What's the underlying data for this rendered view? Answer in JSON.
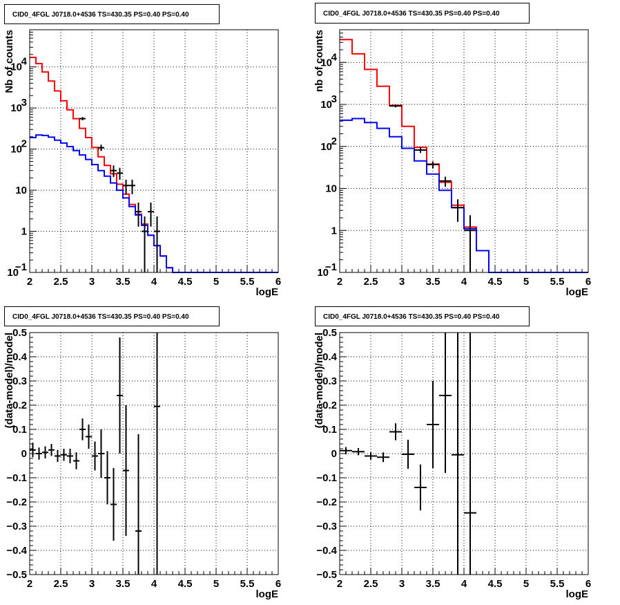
{
  "chart_data": [
    {
      "type": "line",
      "title": "CID0_4FGL J0718.0+4536 TS=430.35 PS=0.40 PS=0.40",
      "xlabel": "logE",
      "ylabel": "Nb of counts",
      "xlim": [
        2,
        6
      ],
      "ylim": [
        0.1,
        80000
      ],
      "yscale": "log",
      "grid": true,
      "x_ticks": [
        "2",
        "2.5",
        "3",
        "3.5",
        "4",
        "4.5",
        "5",
        "5.5",
        "6"
      ],
      "y_ticks": [
        {
          "v": 0.1,
          "label": "10",
          "exp": "−1"
        },
        {
          "v": 1,
          "label": "1"
        },
        {
          "v": 10,
          "label": "10"
        },
        {
          "v": 100,
          "label": "10",
          "exp": "2"
        },
        {
          "v": 1000,
          "label": "10",
          "exp": "3"
        },
        {
          "v": 10000,
          "label": "10",
          "exp": "4"
        }
      ],
      "bin_edges": [
        2.0,
        2.1,
        2.2,
        2.3,
        2.4,
        2.5,
        2.6,
        2.7,
        2.8,
        2.9,
        3.0,
        3.1,
        3.2,
        3.3,
        3.4,
        3.5,
        3.6,
        3.7,
        3.8,
        3.9,
        4.0,
        4.1,
        4.2,
        4.3,
        4.4,
        4.5,
        4.6,
        4.7,
        4.8,
        4.9,
        5.0,
        5.1,
        5.2,
        5.3,
        5.4,
        5.5,
        5.6,
        5.7,
        5.8,
        5.9,
        6.0
      ],
      "series": [
        {
          "color": "#ff0000",
          "style": "step",
          "values": [
            17000,
            12000,
            7500,
            4500,
            2600,
            1500,
            900,
            550,
            320,
            190,
            110,
            65,
            40,
            25,
            14,
            8,
            4.5,
            2.6,
            1.5,
            0.8,
            0.45,
            0.25,
            0.13,
            0.1,
            0.1,
            0.1,
            0.1,
            0.1,
            0.1,
            0.1,
            0.1,
            0.1,
            0.1,
            0.1,
            0.1,
            0.1,
            0.1,
            0.1,
            0.1,
            0.1
          ]
        },
        {
          "color": "#0000ff",
          "style": "step",
          "values": [
            190,
            220,
            215,
            195,
            165,
            140,
            115,
            92,
            72,
            56,
            42,
            30,
            22,
            15,
            10,
            6.5,
            4,
            2.5,
            1.4,
            0.8,
            0.45,
            0.25,
            0.13,
            0.1,
            0.1,
            0.1,
            0.1,
            0.1,
            0.1,
            0.1,
            0.1,
            0.1,
            0.1,
            0.1,
            0.1,
            0.1,
            0.1,
            0.1,
            0.1,
            0.1
          ]
        },
        {
          "color": "#000000",
          "style": "errorbar",
          "halfwidth": 0.05,
          "points": [
            {
              "x": 2.85,
              "y": 550,
              "lo": 500,
              "hi": 600
            },
            {
              "x": 3.15,
              "y": 108,
              "lo": 90,
              "hi": 128
            },
            {
              "x": 3.35,
              "y": 30,
              "lo": 21,
              "hi": 40
            },
            {
              "x": 3.45,
              "y": 26,
              "lo": 18,
              "hi": 35
            },
            {
              "x": 3.55,
              "y": 13,
              "lo": 8,
              "hi": 18
            },
            {
              "x": 3.65,
              "y": 13,
              "lo": 8,
              "hi": 18
            },
            {
              "x": 3.75,
              "y": 3,
              "lo": 1.3,
              "hi": 5
            },
            {
              "x": 3.85,
              "y": 1,
              "lo": 0.1,
              "hi": 2.3
            },
            {
              "x": 3.95,
              "y": 3,
              "lo": 1.3,
              "hi": 5
            },
            {
              "x": 4.05,
              "y": 1,
              "lo": 0.1,
              "hi": 2.3
            }
          ]
        }
      ]
    },
    {
      "type": "line",
      "title": "CID0_4FGL J0718.0+4536 TS=430.35 PS=0.40 PS=0.40",
      "xlabel": "logE",
      "ylabel": "nb of counts",
      "xlim": [
        2,
        6
      ],
      "ylim": [
        0.1,
        60000
      ],
      "yscale": "log",
      "grid": true,
      "x_ticks": [
        "2",
        "2.5",
        "3",
        "3.5",
        "4",
        "4.5",
        "5",
        "5.5",
        "6"
      ],
      "y_ticks": [
        {
          "v": 0.1,
          "label": "10",
          "exp": "−1"
        },
        {
          "v": 1,
          "label": "1"
        },
        {
          "v": 10,
          "label": "10"
        },
        {
          "v": 100,
          "label": "10",
          "exp": "2"
        },
        {
          "v": 1000,
          "label": "10",
          "exp": "3"
        },
        {
          "v": 10000,
          "label": "10",
          "exp": "4"
        }
      ],
      "bin_edges": [
        2.0,
        2.2,
        2.4,
        2.6,
        2.8,
        3.0,
        3.2,
        3.4,
        3.6,
        3.8,
        4.0,
        4.2,
        4.4,
        4.6,
        4.8,
        5.0,
        5.2,
        5.4,
        5.6,
        5.8,
        6.0
      ],
      "series": [
        {
          "color": "#ff0000",
          "style": "step",
          "values": [
            35000,
            16000,
            6800,
            2700,
            950,
            300,
            95,
            38,
            14,
            4,
            1.2,
            0.33,
            0.1,
            0.1,
            0.1,
            0.1,
            0.1,
            0.1,
            0.1,
            0.1
          ]
        },
        {
          "color": "#0000ff",
          "style": "step",
          "values": [
            420,
            460,
            370,
            270,
            170,
            90,
            45,
            22,
            9,
            3.5,
            1.1,
            0.33,
            0.1,
            0.1,
            0.1,
            0.1,
            0.1,
            0.1,
            0.1,
            0.1
          ]
        },
        {
          "color": "#000000",
          "style": "errorbar",
          "halfwidth": 0.1,
          "points": [
            {
              "x": 2.9,
              "y": 920,
              "lo": 850,
              "hi": 990
            },
            {
              "x": 3.3,
              "y": 82,
              "lo": 70,
              "hi": 95
            },
            {
              "x": 3.5,
              "y": 37,
              "lo": 30,
              "hi": 44
            },
            {
              "x": 3.7,
              "y": 15,
              "lo": 11,
              "hi": 19
            },
            {
              "x": 3.9,
              "y": 3.5,
              "lo": 1.6,
              "hi": 5.5
            },
            {
              "x": 4.1,
              "y": 1,
              "lo": 0.1,
              "hi": 2.3
            }
          ]
        }
      ]
    },
    {
      "type": "scatter",
      "title": "CID0_4FGL J0718.0+4536 TS=430.35 PS=0.40 PS=0.40",
      "xlabel": "logE",
      "ylabel": "(data-model)/model",
      "xlim": [
        2,
        6
      ],
      "ylim": [
        -0.5,
        0.5
      ],
      "grid": true,
      "x_ticks": [
        "2",
        "2.5",
        "3",
        "3.5",
        "4",
        "4.5",
        "5",
        "5.5",
        "6"
      ],
      "y_ticks": [
        "−0.5",
        "−0.4",
        "−0.3",
        "−0.2",
        "−0.1",
        "0",
        "0.1",
        "0.2",
        "0.3",
        "0.4",
        "0.5"
      ],
      "series": [
        {
          "color": "#000000",
          "style": "errorbar",
          "halfwidth": 0.05,
          "points": [
            {
              "x": 2.05,
              "y": 0.015,
              "err": 0.03
            },
            {
              "x": 2.15,
              "y": 0.0,
              "err": 0.025
            },
            {
              "x": 2.25,
              "y": 0.005,
              "err": 0.025
            },
            {
              "x": 2.35,
              "y": 0.015,
              "err": 0.025
            },
            {
              "x": 2.45,
              "y": -0.01,
              "err": 0.025
            },
            {
              "x": 2.55,
              "y": -0.005,
              "err": 0.025
            },
            {
              "x": 2.65,
              "y": -0.01,
              "err": 0.03
            },
            {
              "x": 2.75,
              "y": -0.03,
              "err": 0.035
            },
            {
              "x": 2.85,
              "y": 0.1,
              "err": 0.045
            },
            {
              "x": 2.95,
              "y": 0.07,
              "err": 0.05
            },
            {
              "x": 3.05,
              "y": -0.01,
              "err": 0.06
            },
            {
              "x": 3.15,
              "y": 0.0,
              "err": 0.1
            },
            {
              "x": 3.25,
              "y": -0.1,
              "err": 0.11
            },
            {
              "x": 3.35,
              "y": -0.21,
              "err": 0.15
            },
            {
              "x": 3.45,
              "y": 0.24,
              "err": 0.24
            },
            {
              "x": 3.55,
              "y": -0.07,
              "err": 0.27
            },
            {
              "x": 3.75,
              "y": -0.32,
              "err": 0.4
            },
            {
              "x": 4.05,
              "y": 0.195,
              "err": 1.0
            }
          ]
        }
      ]
    },
    {
      "type": "scatter",
      "title": "CID0_4FGL J0718.0+4536 TS=430.35 PS=0.40 PS=0.40",
      "xlabel": "logE",
      "ylabel": "(data-model)/model",
      "xlim": [
        2,
        6
      ],
      "ylim": [
        -0.5,
        0.5
      ],
      "grid": true,
      "x_ticks": [
        "2",
        "2.5",
        "3",
        "3.5",
        "4",
        "4.5",
        "5",
        "5.5",
        "6"
      ],
      "y_ticks": [
        "−0.5",
        "−0.4",
        "−0.3",
        "−0.2",
        "−0.1",
        "0",
        "0.1",
        "0.2",
        "0.3",
        "0.4",
        "0.5"
      ],
      "series": [
        {
          "color": "#000000",
          "style": "errorbar",
          "halfwidth": 0.1,
          "points": [
            {
              "x": 2.1,
              "y": 0.012,
              "err": 0.015
            },
            {
              "x": 2.3,
              "y": 0.008,
              "err": 0.015
            },
            {
              "x": 2.5,
              "y": -0.01,
              "err": 0.015
            },
            {
              "x": 2.7,
              "y": -0.015,
              "err": 0.02
            },
            {
              "x": 2.9,
              "y": 0.09,
              "err": 0.035
            },
            {
              "x": 3.1,
              "y": -0.003,
              "err": 0.06
            },
            {
              "x": 3.3,
              "y": -0.14,
              "err": 0.095
            },
            {
              "x": 3.5,
              "y": 0.12,
              "err": 0.18
            },
            {
              "x": 3.7,
              "y": 0.24,
              "err": 0.32
            },
            {
              "x": 3.9,
              "y": -0.005,
              "err": 0.6
            },
            {
              "x": 4.1,
              "y": -0.245,
              "err": 1.0
            }
          ]
        }
      ]
    }
  ]
}
